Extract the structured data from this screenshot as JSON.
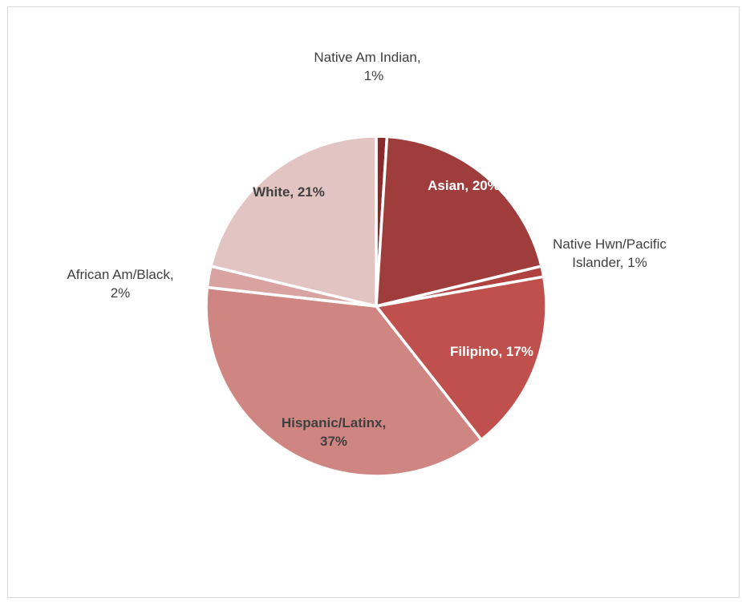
{
  "chart_data": {
    "type": "pie",
    "title": "",
    "slices": [
      {
        "name": "Native Am Indian",
        "value": 1,
        "label_lines": [
          "Native Am Indian,",
          "1%"
        ],
        "color": "#8B2A2A",
        "label_position": "outside"
      },
      {
        "name": "Asian",
        "value": 20,
        "label_lines": [
          "Asian, 20%"
        ],
        "color": "#9E3D3B",
        "label_position": "inside"
      },
      {
        "name": "Native Hwn/Pacific Islander",
        "value": 1,
        "label_lines": [
          "Native Hwn/Pacific",
          "Islander, 1%"
        ],
        "color": "#B04141",
        "label_position": "outside"
      },
      {
        "name": "Filipino",
        "value": 17,
        "label_lines": [
          "Filipino, 17%"
        ],
        "color": "#C0504D",
        "label_position": "inside"
      },
      {
        "name": "Hispanic/Latinx",
        "value": 37,
        "label_lines": [
          "Hispanic/Latinx,",
          "37%"
        ],
        "color": "#CF8683",
        "label_position": "inside"
      },
      {
        "name": "African Am/Black",
        "value": 2,
        "label_lines": [
          "African Am/Black,",
          "2%"
        ],
        "color": "#D9A3A1",
        "label_position": "outside"
      },
      {
        "name": "White",
        "value": 21,
        "label_lines": [
          "White, 21%"
        ],
        "color": "#E2C4C3",
        "label_position": "inside"
      }
    ],
    "start_angle_deg": 0,
    "direction": "clockwise",
    "legend": "none",
    "data_labels": "category-and-percent"
  }
}
